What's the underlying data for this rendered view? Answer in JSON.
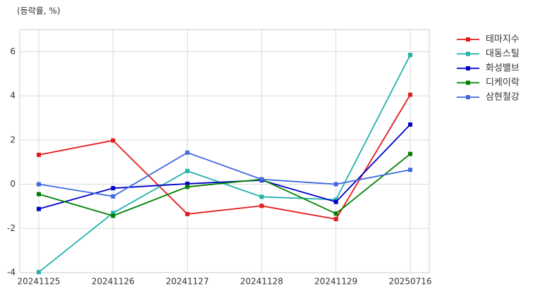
{
  "chart_data": {
    "type": "line",
    "subtitle": "(등락률, %)",
    "categories": [
      "20241125",
      "20241126",
      "20241127",
      "20241128",
      "20241129",
      "20250716"
    ],
    "series": [
      {
        "name": "테마지수",
        "color": "#e31a1c",
        "values": [
          1.33,
          1.98,
          -1.35,
          -0.98,
          -1.58,
          4.05
        ]
      },
      {
        "name": "대동스틸",
        "color": "#20b2aa",
        "values": [
          -3.98,
          -1.3,
          0.6,
          -0.57,
          -0.7,
          5.85
        ]
      },
      {
        "name": "화성밸브",
        "color": "#0000cd",
        "values": [
          -1.12,
          -0.18,
          0.02,
          0.18,
          -0.8,
          2.7
        ]
      },
      {
        "name": "디케이락",
        "color": "#008000",
        "values": [
          -0.45,
          -1.43,
          -0.12,
          0.22,
          -1.33,
          1.37
        ]
      },
      {
        "name": "삼현철강",
        "color": "#4169e1",
        "values": [
          0.0,
          -0.55,
          1.43,
          0.22,
          0.0,
          0.65
        ]
      }
    ],
    "ylim": [
      -4,
      7
    ],
    "yticks": [
      -4,
      -2,
      0,
      2,
      4,
      6
    ],
    "grid": true,
    "legend": "outside-right"
  }
}
